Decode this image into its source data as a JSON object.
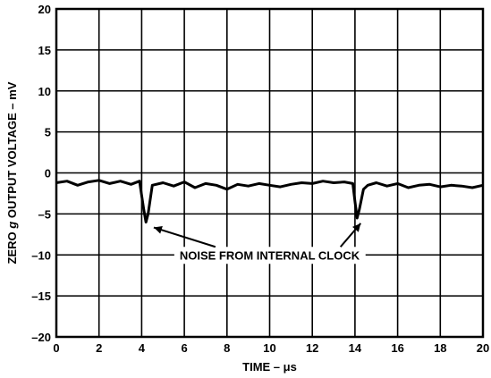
{
  "chart_data": {
    "type": "line",
    "title": "",
    "xlabel": "TIME – μs",
    "ylabel_parts": [
      "ZERO ",
      "g",
      " OUTPUT VOLTAGE – mV"
    ],
    "xlim": [
      0,
      20
    ],
    "ylim": [
      -20,
      20
    ],
    "x_ticks": [
      "0",
      "2",
      "4",
      "6",
      "8",
      "10",
      "12",
      "14",
      "16",
      "18",
      "20"
    ],
    "y_ticks": [
      "20",
      "15",
      "10",
      "5",
      "0",
      "–5",
      "–10",
      "–15",
      "–20"
    ],
    "grid": true,
    "series": [
      {
        "x": [
          0,
          0.5,
          1,
          1.5,
          2,
          2.5,
          3,
          3.5,
          3.9,
          4.1,
          4.2,
          4.3,
          4.5,
          5,
          5.5,
          6,
          6.5,
          7,
          7.5,
          8,
          8.5,
          9,
          9.5,
          10,
          10.5,
          11,
          11.5,
          12,
          12.5,
          13,
          13.5,
          13.9,
          14.0,
          14.1,
          14.2,
          14.4,
          14.6,
          15,
          15.5,
          16,
          16.5,
          17,
          17.5,
          18,
          18.5,
          19,
          19.5,
          20
        ],
        "y": [
          -1.2,
          -1.0,
          -1.5,
          -1.1,
          -0.9,
          -1.3,
          -1.0,
          -1.4,
          -1.0,
          -4.5,
          -6.0,
          -5.0,
          -1.5,
          -1.2,
          -1.6,
          -1.1,
          -1.8,
          -1.3,
          -1.5,
          -2.0,
          -1.4,
          -1.6,
          -1.3,
          -1.5,
          -1.7,
          -1.4,
          -1.2,
          -1.3,
          -1.0,
          -1.2,
          -1.1,
          -1.3,
          -3.5,
          -5.5,
          -4.5,
          -2.0,
          -1.5,
          -1.2,
          -1.6,
          -1.3,
          -1.8,
          -1.5,
          -1.4,
          -1.7,
          -1.5,
          -1.6,
          -1.8,
          -1.5
        ]
      }
    ],
    "annotation": {
      "text": "NOISE FROM INTERNAL CLOCK",
      "arrows_to": [
        [
          4.4,
          -6.0
        ],
        [
          14.1,
          -5.5
        ]
      ]
    }
  }
}
